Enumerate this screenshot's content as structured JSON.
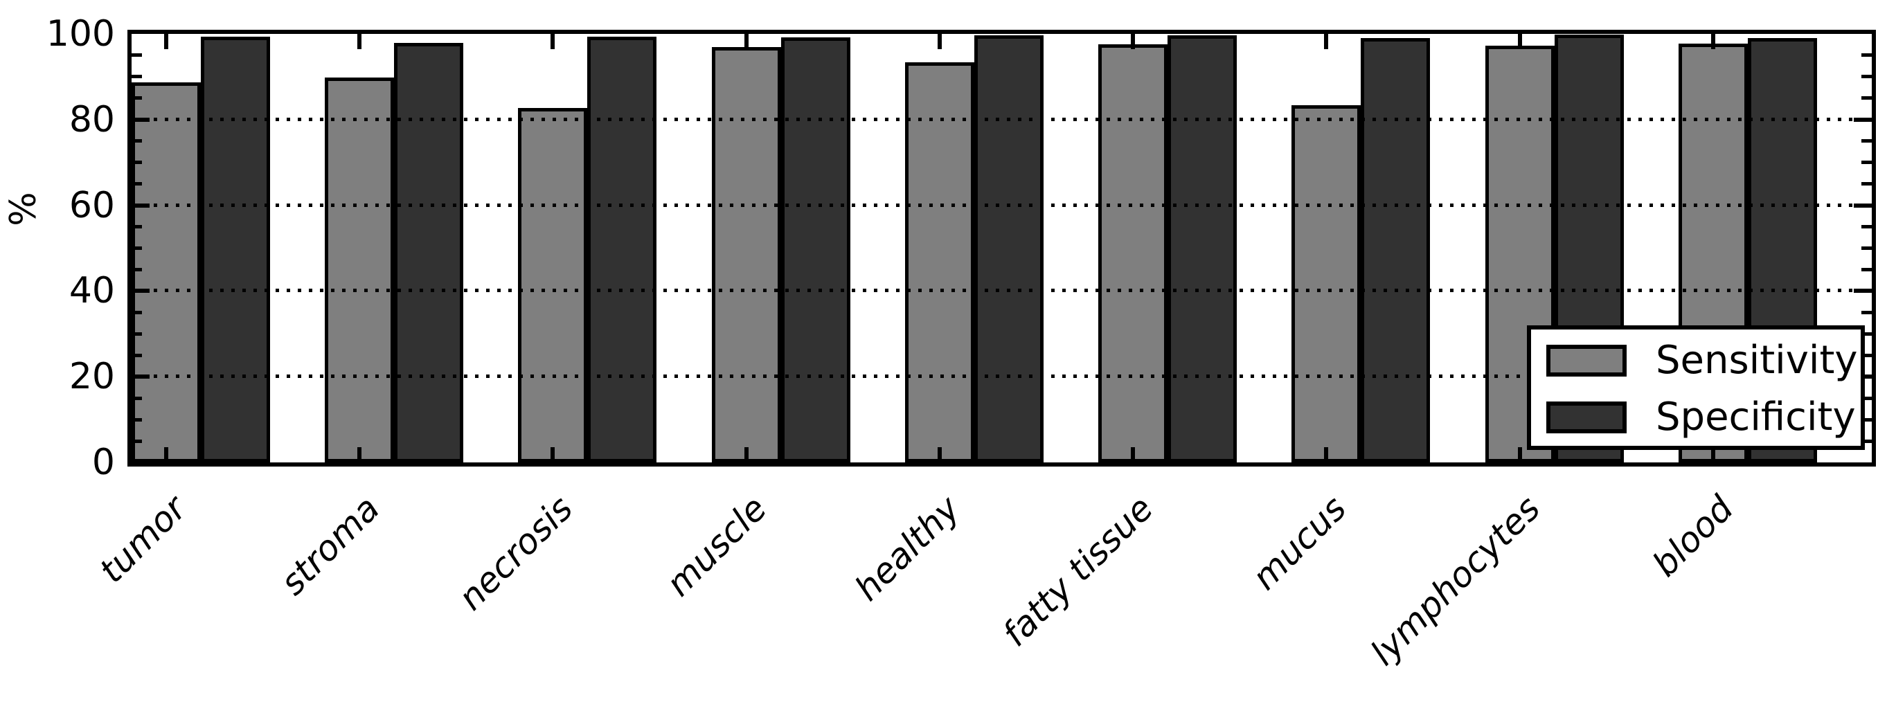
{
  "chart_data": {
    "type": "bar",
    "title": "",
    "xlabel": "",
    "ylabel": "%",
    "ylim": [
      0,
      100
    ],
    "yticks": [
      0,
      20,
      40,
      60,
      80,
      100
    ],
    "ytick_labels": [
      "0",
      "20",
      "40",
      "60",
      "80",
      "100"
    ],
    "yminor_step": 5,
    "grid": "dotted horizontal at 20/40/60/80, drawn over bars",
    "legend_position": "lower right",
    "categories": [
      "tumor",
      "stroma",
      "necrosis",
      "muscle",
      "healthy",
      "fatty tissue",
      "mucus",
      "lymphocytes",
      "blood"
    ],
    "series": [
      {
        "name": "Sensitivity",
        "color": "#7f7f7f",
        "values": [
          88.7,
          89.8,
          82.7,
          97.0,
          93.4,
          97.6,
          83.4,
          97.2,
          97.7
        ]
      },
      {
        "name": "Specificity",
        "color": "#323232",
        "values": [
          99.4,
          97.9,
          99.4,
          99.2,
          99.7,
          99.7,
          99.1,
          99.8,
          99.1
        ]
      }
    ],
    "bar_edge_color": "#000000",
    "background_color": "#ffffff"
  }
}
